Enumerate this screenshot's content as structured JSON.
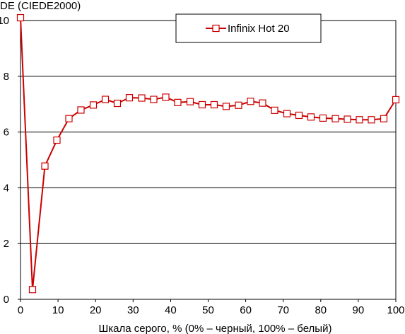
{
  "chart_data": {
    "type": "line",
    "title": "",
    "ylabel": "DE (CIEDE2000)",
    "xlabel": "Шкала серого, % (0% – черный, 100% – белый)",
    "xlim": [
      0,
      100
    ],
    "ylim": [
      0,
      10
    ],
    "x_ticks": [
      "0",
      "10",
      "20",
      "30",
      "40",
      "50",
      "60",
      "70",
      "80",
      "90",
      "100"
    ],
    "y_ticks": [
      "0",
      "2",
      "4",
      "6",
      "8",
      "10"
    ],
    "grid": "horizontal",
    "legend_position": "top-center",
    "series": [
      {
        "name": "Infinix Hot 20",
        "color": "#cc0000",
        "marker": "square",
        "x": [
          0,
          3.2,
          6.5,
          9.7,
          12.9,
          16.1,
          19.4,
          22.6,
          25.8,
          29.0,
          32.3,
          35.5,
          38.7,
          41.9,
          45.2,
          48.4,
          51.6,
          54.8,
          58.1,
          61.3,
          64.5,
          67.7,
          71.0,
          74.2,
          77.4,
          80.6,
          83.9,
          87.1,
          90.3,
          93.5,
          96.8,
          100
        ],
        "y": [
          10.1,
          0.35,
          4.78,
          5.71,
          6.48,
          6.79,
          6.97,
          7.17,
          7.03,
          7.23,
          7.22,
          7.17,
          7.25,
          7.06,
          7.09,
          6.98,
          6.98,
          6.92,
          6.96,
          7.1,
          7.04,
          6.78,
          6.66,
          6.6,
          6.54,
          6.5,
          6.48,
          6.46,
          6.44,
          6.44,
          6.48,
          7.16
        ]
      }
    ]
  }
}
